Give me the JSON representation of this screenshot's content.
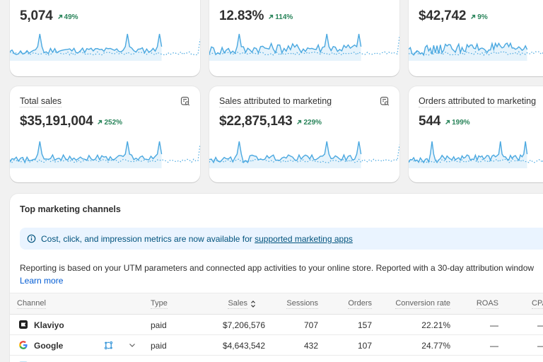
{
  "metrics_row1": [
    {
      "value": "5,074",
      "change": "49%"
    },
    {
      "value": "12.83%",
      "change": "114%"
    },
    {
      "value": "$42,742",
      "change": "9%"
    }
  ],
  "metrics_row2": [
    {
      "title": "Total sales",
      "value": "$35,191,004",
      "change": "252%",
      "icon": "report-search-icon"
    },
    {
      "title": "Sales attributed to marketing",
      "value": "$22,875,143",
      "change": "229%",
      "icon": "report-search-icon"
    },
    {
      "title": "Orders attributed to marketing",
      "value": "544",
      "change": "199%",
      "icon": "report-search-icon"
    }
  ],
  "colors": {
    "accent_line": "#4aa8e0",
    "positive": "#29845a",
    "banner_bg": "#eaf4ff",
    "link": "#005bd3"
  },
  "channels": {
    "title": "Top marketing channels",
    "banner": {
      "icon": "info-circle-icon",
      "text": "Cost, click, and impression metrics are now available for ",
      "link": "supported marketing apps"
    },
    "reporting_text": "Reporting is based on your UTM parameters and connected app activities to your online store. Reported with a 30-day attribution window",
    "learn_more": "Learn more",
    "columns": {
      "channel": "Channel",
      "type": "Type",
      "sales": "Sales",
      "sessions": "Sessions",
      "orders": "Orders",
      "conversion_rate": "Conversion rate",
      "roas": "ROAS",
      "cpa": "CPA"
    },
    "rows": [
      {
        "channel": "Klaviyo",
        "icon": "klaviyo-logo-icon",
        "type": "paid",
        "sales": "$7,206,576",
        "sessions": "707",
        "orders": "157",
        "conversion_rate": "22.21%",
        "roas": "—",
        "cpa": "—"
      },
      {
        "channel": "Google",
        "icon": "google-logo-icon",
        "type": "paid",
        "sales": "$4,643,542",
        "sessions": "432",
        "orders": "107",
        "conversion_rate": "24.77%",
        "roas": "—",
        "cpa": "—"
      }
    ]
  }
}
